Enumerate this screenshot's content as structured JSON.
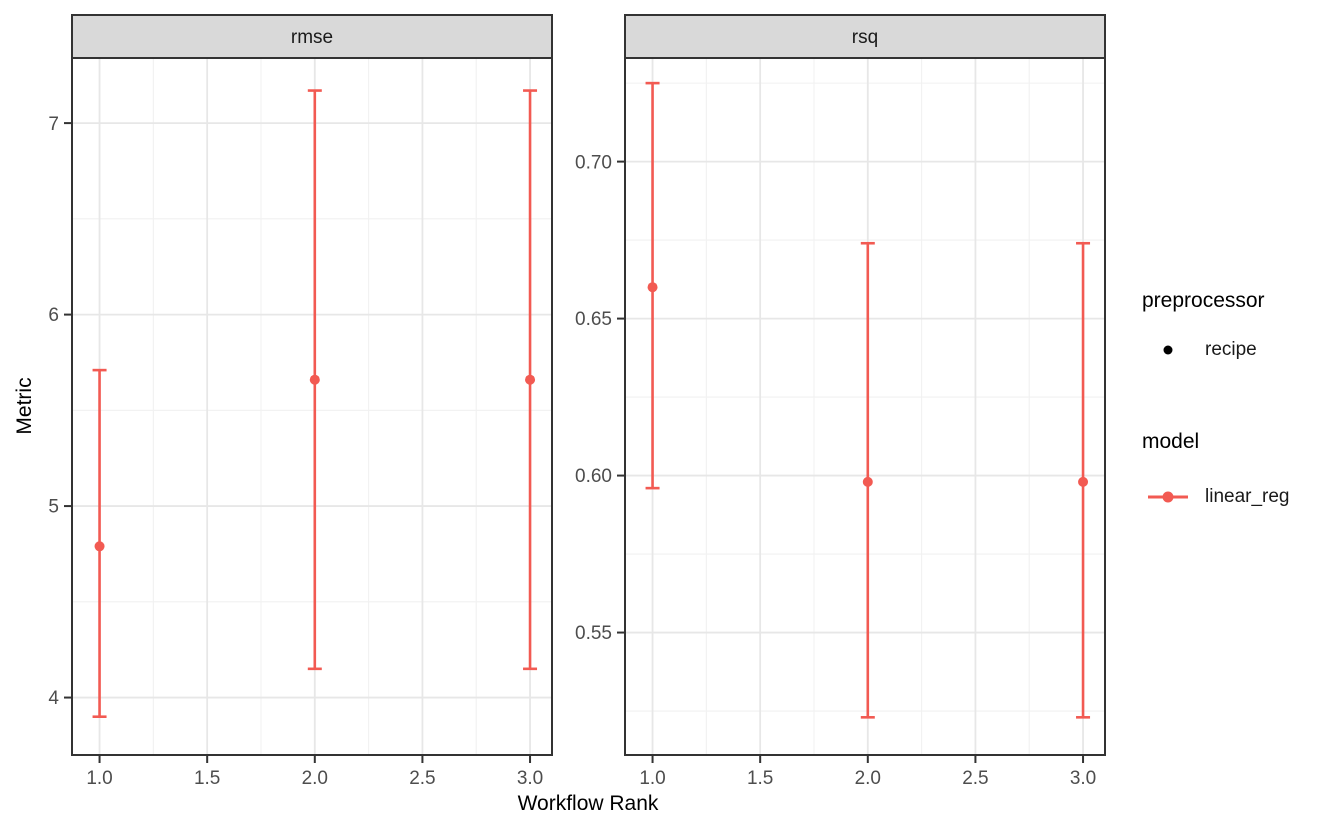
{
  "chart_data": {
    "type": "scatter",
    "subtype": "pointrange-errorbar-facets",
    "title": "",
    "xlabel": "Workflow Rank",
    "ylabel": "Metric",
    "grid": true,
    "xlim": [
      0.872,
      3.102
    ],
    "xticks": [
      1.0,
      1.5,
      2.0,
      2.5,
      3.0
    ],
    "xtick_labels": [
      "1.0",
      "1.5",
      "2.0",
      "2.5",
      "3.0"
    ],
    "xticks_minor": [
      1.25,
      1.75,
      2.25,
      2.75
    ],
    "facets": [
      {
        "label": "rmse",
        "ylim": [
          3.7,
          7.34
        ],
        "yticks_major": [
          4,
          5,
          6,
          7
        ],
        "ytick_labels": [
          "4",
          "5",
          "6",
          "7"
        ],
        "yticks_minor": [
          4.5,
          5.5,
          6.5
        ],
        "points": [
          {
            "x": 1.0,
            "y": 4.79,
            "ymin": 3.9,
            "ymax": 5.71
          },
          {
            "x": 2.0,
            "y": 5.66,
            "ymin": 4.15,
            "ymax": 7.17
          },
          {
            "x": 3.0,
            "y": 5.66,
            "ymin": 4.15,
            "ymax": 7.17
          }
        ]
      },
      {
        "label": "rsq",
        "ylim": [
          0.511,
          0.733
        ],
        "yticks_major": [
          0.55,
          0.6,
          0.65,
          0.7
        ],
        "ytick_labels": [
          "0.55",
          "0.60",
          "0.65",
          "0.70"
        ],
        "yticks_minor": [
          0.525,
          0.575,
          0.625,
          0.675,
          0.725
        ],
        "points": [
          {
            "x": 1.0,
            "y": 0.66,
            "ymin": 0.596,
            "ymax": 0.725
          },
          {
            "x": 2.0,
            "y": 0.598,
            "ymin": 0.523,
            "ymax": 0.674
          },
          {
            "x": 3.0,
            "y": 0.598,
            "ymin": 0.523,
            "ymax": 0.674
          }
        ]
      }
    ],
    "legend": {
      "position": "right",
      "groups": [
        {
          "title": "preprocessor",
          "items": [
            {
              "label": "recipe",
              "key": "point",
              "color": "#000000"
            }
          ]
        },
        {
          "title": "model",
          "items": [
            {
              "label": "linear_reg",
              "key": "point-line",
              "color": "#F25A52"
            }
          ]
        }
      ]
    },
    "colors": {
      "series": "#F25A52",
      "strip_fill": "#D9D9D9",
      "panel_border": "#333333",
      "grid_major": "#E7E7E7",
      "grid_minor": "#F1F1F1",
      "axis_text": "#4D4D4D",
      "strip_text": "#1A1A1A",
      "tick_mark": "#333333"
    }
  }
}
